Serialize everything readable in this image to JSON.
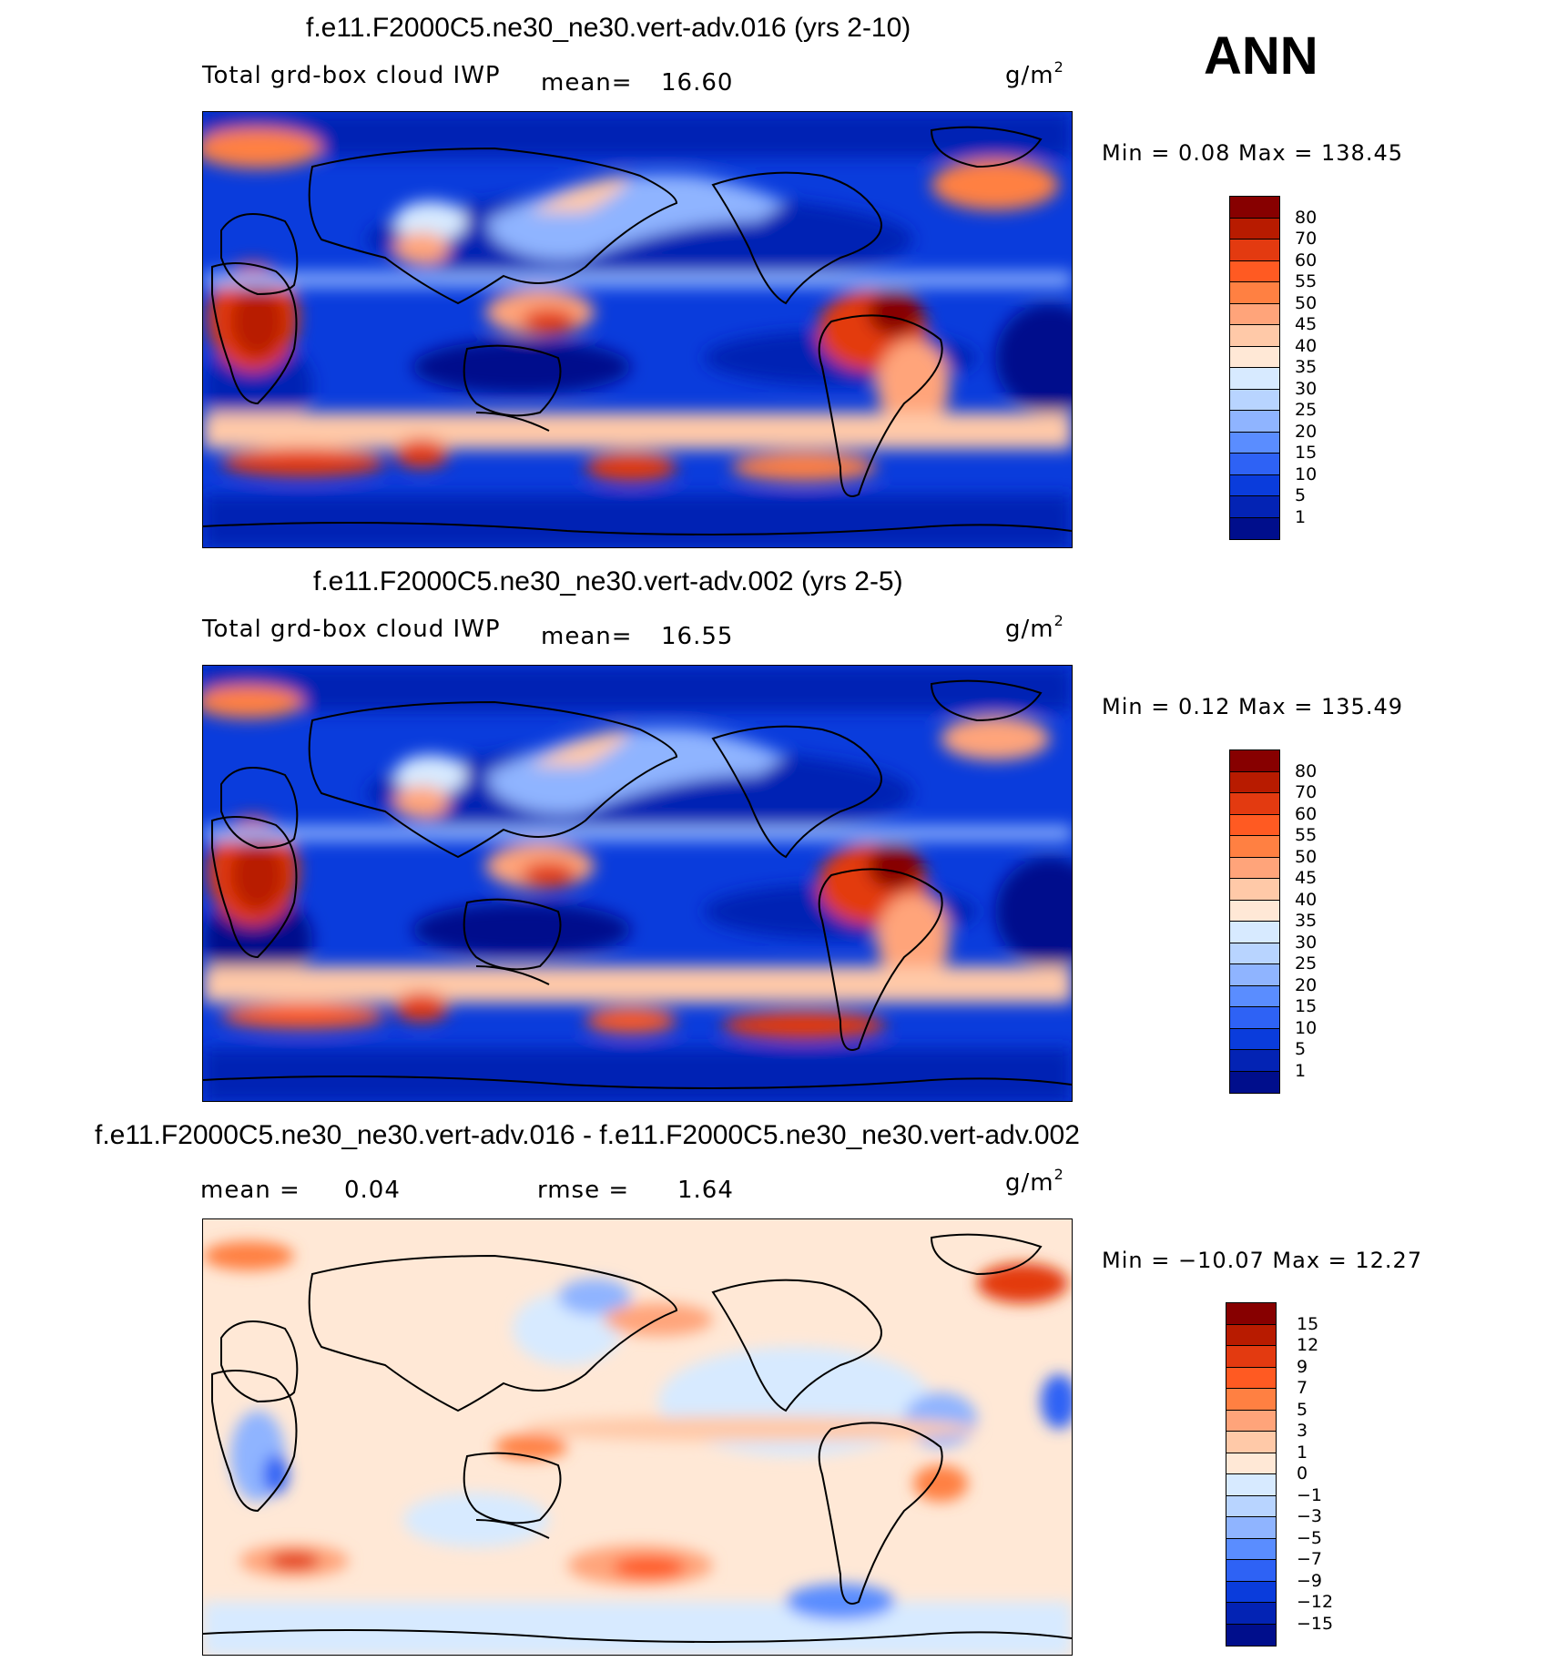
{
  "season": "ANN",
  "panels": [
    {
      "id": "p1",
      "title": "f.e11.F2000C5.ne30_ne30.vert-adv.016 (yrs 2-10)",
      "variable": "Total grd-box cloud IWP",
      "mean_label": "mean=",
      "mean_value": "16.60",
      "units": "g/m",
      "units_exp": "2",
      "minmax": "Min =    0.08  Max  =  138.45",
      "cb_labels": [
        "80",
        "70",
        "60",
        "55",
        "50",
        "45",
        "40",
        "35",
        "30",
        "25",
        "20",
        "15",
        "10",
        "5",
        "1"
      ],
      "cb_colors": [
        "#870000",
        "#b81b00",
        "#e33a10",
        "#ff5a22",
        "#ff8042",
        "#ffa47a",
        "#ffc9a8",
        "#ffe8d6",
        "#d7eaff",
        "#b8d4ff",
        "#8fb4ff",
        "#5a8dff",
        "#2e62f5",
        "#0a3cdc",
        "#0323b4",
        "#000e8c"
      ]
    },
    {
      "id": "p2",
      "title": "f.e11.F2000C5.ne30_ne30.vert-adv.002 (yrs 2-5)",
      "variable": "Total grd-box cloud IWP",
      "mean_label": "mean=",
      "mean_value": "16.55",
      "units": "g/m",
      "units_exp": "2",
      "minmax": "Min =    0.12  Max  =  135.49",
      "cb_labels": [
        "80",
        "70",
        "60",
        "55",
        "50",
        "45",
        "40",
        "35",
        "30",
        "25",
        "20",
        "15",
        "10",
        "5",
        "1"
      ],
      "cb_colors": [
        "#870000",
        "#b81b00",
        "#e33a10",
        "#ff5a22",
        "#ff8042",
        "#ffa47a",
        "#ffc9a8",
        "#ffe8d6",
        "#d7eaff",
        "#b8d4ff",
        "#8fb4ff",
        "#5a8dff",
        "#2e62f5",
        "#0a3cdc",
        "#0323b4",
        "#000e8c"
      ]
    },
    {
      "id": "p3",
      "title": "f.e11.F2000C5.ne30_ne30.vert-adv.016 - f.e11.F2000C5.ne30_ne30.vert-adv.002",
      "mean_label": "mean =",
      "mean_value": "0.04",
      "rmse_label": "rmse =",
      "rmse_value": "1.64",
      "units": "g/m",
      "units_exp": "2",
      "minmax": "Min = −10.07  Max  =   12.27",
      "cb_labels": [
        "15",
        "12",
        "9",
        "7",
        "5",
        "3",
        "1",
        "0",
        "−1",
        "−3",
        "−5",
        "−7",
        "−9",
        "−12",
        "−15"
      ],
      "cb_colors": [
        "#870000",
        "#b81b00",
        "#e33a10",
        "#ff5a22",
        "#ff8042",
        "#ffa47a",
        "#ffc9a8",
        "#ffe8d6",
        "#d7eaff",
        "#b8d4ff",
        "#8fb4ff",
        "#5a8dff",
        "#2e62f5",
        "#0a3cdc",
        "#0323b4",
        "#000e8c"
      ]
    }
  ]
}
